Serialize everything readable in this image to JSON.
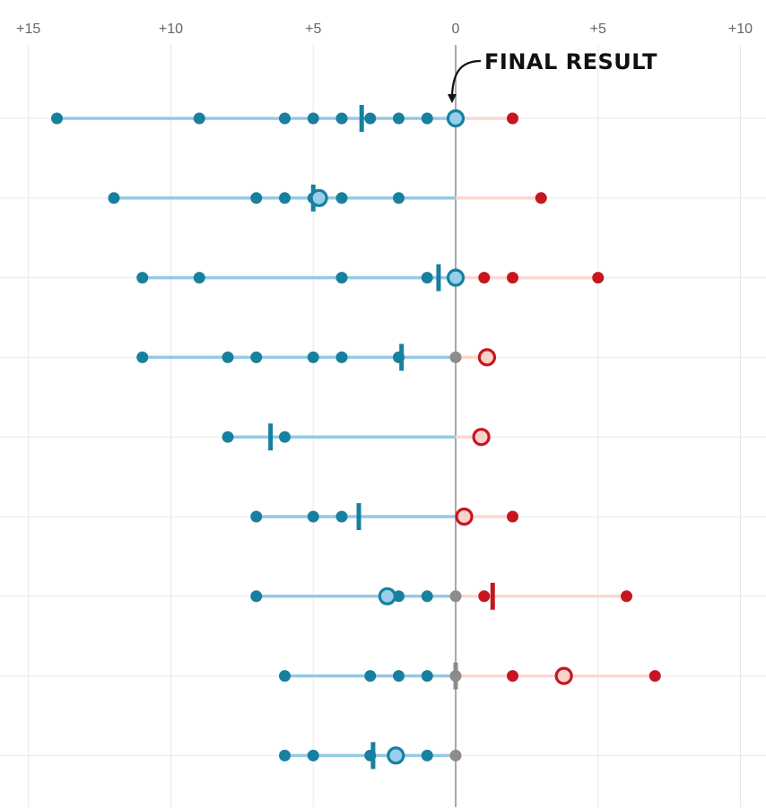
{
  "chart_data": {
    "type": "scatter",
    "title": "",
    "xlabel": "",
    "ylabel": "",
    "xlim": [
      -15.5,
      10.5
    ],
    "grid": true,
    "x_ticks": [
      {
        "value": -15,
        "label": "+15"
      },
      {
        "value": -10,
        "label": "+10"
      },
      {
        "value": -5,
        "label": "+5"
      },
      {
        "value": 0,
        "label": "0"
      },
      {
        "value": 5,
        "label": "+5"
      },
      {
        "value": 10,
        "label": "+10"
      }
    ],
    "annotation": {
      "text": "FINAL RESULT",
      "points_to_row": 0,
      "x": 0
    },
    "colors": {
      "blue_dot": "#17809f",
      "blue_line": "#95c9e6",
      "blue_fill": "#98cdeb",
      "red_dot": "#c7161f",
      "red_line": "#f9d8d0",
      "red_fill": "#fad2cc",
      "gray_dot": "#8c8c8c",
      "axis_line": "#8c8c8c",
      "grid": "#e8e8e8"
    },
    "rows": [
      {
        "dots": [
          -14,
          -9,
          -6,
          -5,
          -4,
          -3,
          -2,
          -1,
          2
        ],
        "mean": -3.3,
        "result": 0
      },
      {
        "dots": [
          -12,
          -7,
          -6,
          -5,
          -4,
          -2,
          3
        ],
        "mean": -5,
        "result": -4.8
      },
      {
        "dots": [
          -11,
          -9,
          -4,
          -1,
          0,
          1,
          2,
          5
        ],
        "mean": -0.6,
        "result": 0
      },
      {
        "dots": [
          -11,
          -8,
          -7,
          -5,
          -4,
          -2,
          0,
          1
        ],
        "mean": -1.9,
        "result": 1.1
      },
      {
        "dots": [
          -8,
          -6
        ],
        "mean": -6.5,
        "result": 0.9
      },
      {
        "dots": [
          -7,
          -5,
          -4,
          2
        ],
        "mean": -3.4,
        "result": 0.3
      },
      {
        "dots": [
          -7,
          -2,
          -1,
          0,
          1,
          6
        ],
        "mean": 1.3,
        "result": -2.4
      },
      {
        "dots": [
          -6,
          -3,
          -2,
          -1,
          0,
          2,
          7
        ],
        "mean": 0,
        "result": 3.8
      },
      {
        "dots": [
          -6,
          -5,
          -3,
          -1,
          0
        ],
        "mean": -2.9,
        "result": -2.1
      }
    ]
  }
}
